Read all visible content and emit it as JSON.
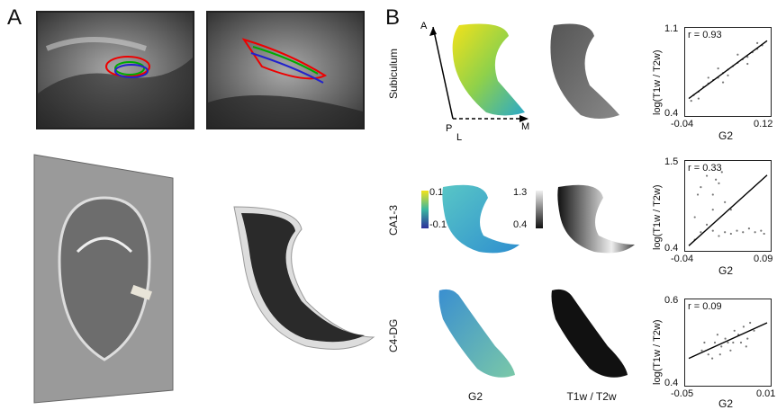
{
  "panel_a": {
    "letter": "A"
  },
  "panel_b": {
    "letter": "B",
    "rows": [
      "Subiculum",
      "CA1-3",
      "C4-DG"
    ],
    "columns": [
      "G2",
      "T1w / T2w"
    ],
    "axes_arrows": {
      "A": "A",
      "M": "M",
      "P": "P",
      "L": "L"
    },
    "colorbar_g2": {
      "max": "0.1",
      "min": "-0.1"
    },
    "colorbar_t1t2": {
      "max": "1.3",
      "min": "0.4"
    }
  },
  "chart_data": [
    {
      "type": "scatter",
      "title": "",
      "annotation": "r = 0.93",
      "xlabel": "G2",
      "ylabel": "log(T1w / T2w)",
      "xlim": [
        -0.04,
        0.12
      ],
      "ylim": [
        0.4,
        1.1
      ],
      "x_ticks": [
        "-0.04",
        "0.12"
      ],
      "y_ticks": [
        "1.1",
        "0.4"
      ],
      "fit": {
        "x": [
          -0.04,
          0.12
        ],
        "y": [
          0.52,
          1.02
        ]
      },
      "points": [
        [
          -0.035,
          0.5
        ],
        [
          -0.03,
          0.55
        ],
        [
          -0.02,
          0.58
        ],
        [
          -0.01,
          0.62
        ],
        [
          0,
          0.65
        ],
        [
          0.01,
          0.68
        ],
        [
          0.02,
          0.7
        ],
        [
          0.03,
          0.74
        ],
        [
          0.04,
          0.77
        ],
        [
          0.05,
          0.8
        ],
        [
          0.06,
          0.83
        ],
        [
          0.07,
          0.86
        ],
        [
          0.08,
          0.88
        ],
        [
          0.09,
          0.92
        ],
        [
          0.1,
          0.95
        ],
        [
          0.11,
          0.98
        ],
        [
          0.0,
          0.7
        ],
        [
          0.02,
          0.78
        ],
        [
          0.04,
          0.72
        ],
        [
          0.06,
          0.9
        ],
        [
          0.08,
          0.82
        ],
        [
          -0.02,
          0.52
        ],
        [
          0.1,
          1.0
        ],
        [
          0.03,
          0.66
        ]
      ]
    },
    {
      "type": "scatter",
      "title": "",
      "annotation": "r = 0.33",
      "xlabel": "G2",
      "ylabel": "log(T1w / T2w)",
      "xlim": [
        -0.04,
        0.09
      ],
      "ylim": [
        0.4,
        1.5
      ],
      "x_ticks": [
        "-0.04",
        "0.09"
      ],
      "y_ticks": [
        "1.5",
        "0.4"
      ],
      "fit": {
        "x": [
          -0.04,
          0.09
        ],
        "y": [
          0.42,
          1.36
        ]
      },
      "points": [
        [
          -0.03,
          0.5
        ],
        [
          -0.02,
          0.6
        ],
        [
          -0.01,
          0.7
        ],
        [
          0,
          0.62
        ],
        [
          0.01,
          0.55
        ],
        [
          0.02,
          0.6
        ],
        [
          0.03,
          0.58
        ],
        [
          0.04,
          0.62
        ],
        [
          0.05,
          0.6
        ],
        [
          0.06,
          0.65
        ],
        [
          0.07,
          0.6
        ],
        [
          0.08,
          0.62
        ],
        [
          -0.02,
          1.2
        ],
        [
          -0.01,
          1.35
        ],
        [
          0,
          1.1
        ],
        [
          0.01,
          1.25
        ],
        [
          0.015,
          1.4
        ],
        [
          0.0,
          0.9
        ],
        [
          -0.03,
          0.8
        ],
        [
          0.02,
          1.0
        ],
        [
          0.005,
          1.3
        ],
        [
          -0.025,
          1.1
        ],
        [
          0.03,
          0.9
        ],
        [
          0.085,
          0.58
        ]
      ]
    },
    {
      "type": "scatter",
      "title": "",
      "annotation": "r = 0.09",
      "xlabel": "G2",
      "ylabel": "log(T1w / T2w)",
      "xlim": [
        -0.05,
        0.01
      ],
      "ylim": [
        0.4,
        0.6
      ],
      "x_ticks": [
        "-0.05",
        "0.01"
      ],
      "y_ticks": [
        "0.6",
        "0.4"
      ],
      "fit": {
        "x": [
          -0.05,
          0.01
        ],
        "y": [
          0.46,
          0.55
        ]
      },
      "points": [
        [
          -0.04,
          0.48
        ],
        [
          -0.038,
          0.5
        ],
        [
          -0.035,
          0.47
        ],
        [
          -0.03,
          0.5
        ],
        [
          -0.028,
          0.52
        ],
        [
          -0.025,
          0.49
        ],
        [
          -0.022,
          0.51
        ],
        [
          -0.02,
          0.5
        ],
        [
          -0.018,
          0.48
        ],
        [
          -0.015,
          0.53
        ],
        [
          -0.012,
          0.52
        ],
        [
          -0.01,
          0.5
        ],
        [
          -0.008,
          0.54
        ],
        [
          -0.005,
          0.51
        ],
        [
          -0.003,
          0.55
        ],
        [
          0.0,
          0.53
        ],
        [
          -0.032,
          0.46
        ],
        [
          -0.026,
          0.47
        ],
        [
          -0.016,
          0.5
        ],
        [
          -0.006,
          0.49
        ]
      ]
    }
  ]
}
